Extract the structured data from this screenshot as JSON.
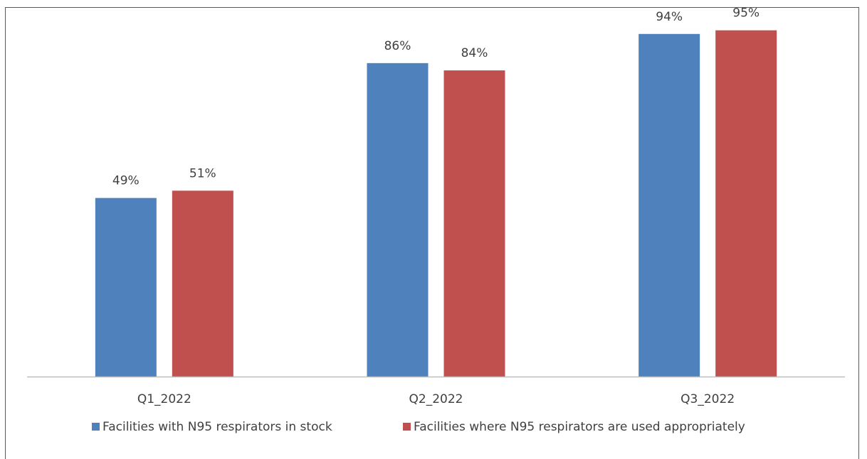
{
  "chart_data": {
    "type": "bar",
    "categories": [
      "Q1_2022",
      "Q2_2022",
      "Q3_2022"
    ],
    "series": [
      {
        "name": "Facilities with N95 respirators in stock",
        "values": [
          49,
          86,
          94
        ],
        "labels": [
          "49%",
          "86%",
          "94%"
        ],
        "color": "#4F81BD"
      },
      {
        "name": "Facilities where N95 respirators are used appropriately",
        "values": [
          51,
          84,
          95
        ],
        "labels": [
          "51%",
          "84%",
          "95%"
        ],
        "color": "#C0504D"
      }
    ],
    "ylim": [
      0,
      100
    ],
    "grid": false,
    "legend_position": "bottom",
    "title": "",
    "xlabel": "",
    "ylabel": ""
  }
}
